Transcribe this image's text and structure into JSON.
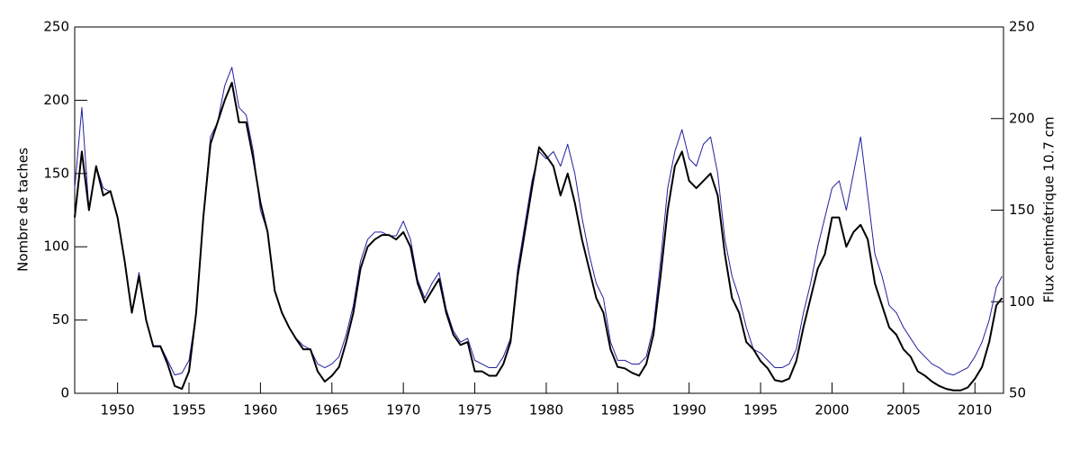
{
  "chart_data": {
    "type": "line",
    "ylabel": "Nombre de taches",
    "y2label": "Flux centimétrique 10.7 cm",
    "xlim": [
      1947,
      2012
    ],
    "xticks": [
      1950,
      1955,
      1960,
      1965,
      1970,
      1975,
      1980,
      1985,
      1990,
      1995,
      2000,
      2005,
      2010
    ],
    "ylim": [
      0,
      250
    ],
    "yticks": [
      0,
      50,
      100,
      150,
      200,
      250
    ],
    "y2lim": [
      50,
      250
    ],
    "y2ticks": [
      50,
      100,
      150,
      200,
      250
    ],
    "x": [
      1947,
      1947.5,
      1948,
      1948.5,
      1949,
      1949.5,
      1950,
      1950.5,
      1951,
      1951.5,
      1952,
      1952.5,
      1953,
      1953.5,
      1954,
      1954.5,
      1955,
      1955.5,
      1956,
      1956.5,
      1957,
      1957.5,
      1958,
      1958.5,
      1959,
      1959.5,
      1960,
      1960.5,
      1961,
      1961.5,
      1962,
      1962.5,
      1963,
      1963.5,
      1964,
      1964.5,
      1965,
      1965.5,
      1966,
      1966.5,
      1967,
      1967.5,
      1968,
      1968.5,
      1969,
      1969.5,
      1970,
      1970.5,
      1971,
      1971.5,
      1972,
      1972.5,
      1973,
      1973.5,
      1974,
      1974.5,
      1975,
      1975.5,
      1976,
      1976.5,
      1977,
      1977.5,
      1978,
      1978.5,
      1979,
      1979.5,
      1980,
      1980.5,
      1981,
      1981.5,
      1982,
      1982.5,
      1983,
      1983.5,
      1984,
      1984.5,
      1985,
      1985.5,
      1986,
      1986.5,
      1987,
      1987.5,
      1988,
      1988.5,
      1989,
      1989.5,
      1990,
      1990.5,
      1991,
      1991.5,
      1992,
      1992.5,
      1993,
      1993.5,
      1994,
      1994.5,
      1995,
      1995.5,
      1996,
      1996.5,
      1997,
      1997.5,
      1998,
      1998.5,
      1999,
      1999.5,
      2000,
      2000.5,
      2001,
      2001.5,
      2002,
      2002.5,
      2003,
      2003.5,
      2004,
      2004.5,
      2005,
      2005.5,
      2006,
      2006.5,
      2007,
      2007.5,
      2008,
      2008.5,
      2009,
      2009.5,
      2010,
      2010.5,
      2011,
      2011.5,
      2011.9
    ],
    "series": [
      {
        "color": "#2020a0",
        "axis": "y2",
        "values": [
          162,
          206,
          150,
          174,
          162,
          160,
          146,
          122,
          94,
          116,
          90,
          76,
          76,
          68,
          60,
          61,
          68,
          94,
          146,
          190,
          198,
          218,
          228,
          206,
          202,
          182,
          150,
          138,
          106,
          94,
          86,
          80,
          76,
          74,
          66,
          64,
          66,
          70,
          82,
          98,
          122,
          134,
          138,
          138,
          136,
          136,
          144,
          134,
          112,
          102,
          110,
          116,
          96,
          84,
          78,
          80,
          68,
          66,
          64,
          64,
          70,
          80,
          118,
          142,
          166,
          182,
          178,
          182,
          174,
          186,
          170,
          146,
          126,
          110,
          102,
          78,
          68,
          68,
          66,
          66,
          70,
          86,
          122,
          162,
          182,
          194,
          178,
          174,
          186,
          190,
          170,
          134,
          114,
          102,
          86,
          74,
          72,
          68,
          64,
          64,
          66,
          74,
          94,
          110,
          130,
          146,
          162,
          166,
          150,
          170,
          190,
          158,
          126,
          114,
          98,
          94,
          86,
          80,
          74,
          70,
          66,
          64,
          61,
          60,
          62,
          64,
          70,
          78,
          90,
          108,
          114
        ]
      },
      {
        "color": "#000000",
        "axis": "y",
        "values": [
          120,
          165,
          125,
          155,
          135,
          138,
          120,
          90,
          55,
          80,
          50,
          32,
          32,
          20,
          5,
          3,
          15,
          55,
          120,
          170,
          185,
          200,
          212,
          185,
          185,
          160,
          130,
          110,
          70,
          55,
          45,
          37,
          30,
          30,
          15,
          8,
          12,
          18,
          35,
          55,
          85,
          100,
          105,
          108,
          108,
          105,
          110,
          100,
          75,
          62,
          70,
          78,
          55,
          40,
          33,
          35,
          15,
          15,
          12,
          12,
          20,
          35,
          80,
          110,
          140,
          168,
          162,
          155,
          135,
          150,
          130,
          105,
          85,
          65,
          55,
          30,
          18,
          17,
          14,
          12,
          20,
          40,
          80,
          125,
          155,
          165,
          145,
          140,
          145,
          150,
          135,
          95,
          65,
          55,
          35,
          30,
          22,
          17,
          9,
          8,
          10,
          22,
          45,
          65,
          85,
          95,
          120,
          120,
          100,
          110,
          115,
          105,
          75,
          60,
          45,
          40,
          30,
          25,
          15,
          12,
          8,
          5,
          3,
          2,
          2,
          4,
          10,
          18,
          35,
          60,
          65
        ]
      }
    ]
  }
}
